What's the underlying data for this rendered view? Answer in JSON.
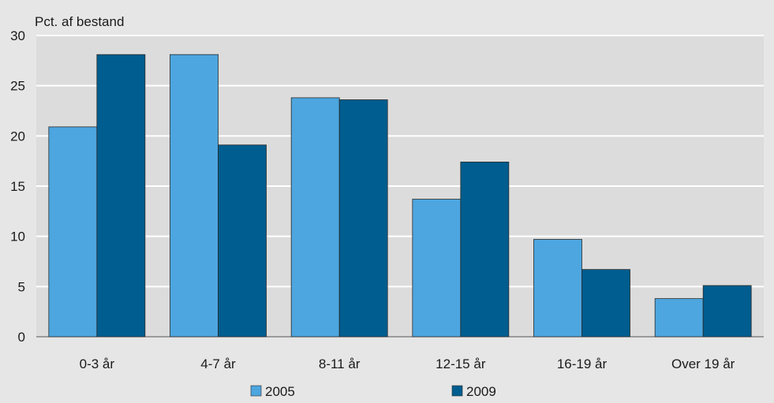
{
  "chart_data": {
    "type": "bar",
    "title": "",
    "xlabel": "",
    "ylabel": "Pct. af bestand",
    "ylim": [
      0,
      30
    ],
    "yticks": [
      0,
      5,
      10,
      15,
      20,
      25,
      30
    ],
    "grid": true,
    "legend_position": "bottom",
    "categories": [
      "0-3 år",
      "4-7 år",
      "8-11 år",
      "12-15 år",
      "16-19 år",
      "Over 19 år"
    ],
    "series": [
      {
        "name": "2005",
        "color": "#4da6df",
        "values": [
          20.9,
          28.1,
          23.8,
          13.7,
          9.7,
          3.8
        ]
      },
      {
        "name": "2009",
        "color": "#005d8f",
        "values": [
          28.1,
          19.1,
          23.6,
          17.4,
          6.7,
          5.1
        ]
      }
    ]
  },
  "colors": {
    "background": "#e6e6e6",
    "plot_background": "#dcdcdc",
    "gridline": "#ffffff"
  }
}
